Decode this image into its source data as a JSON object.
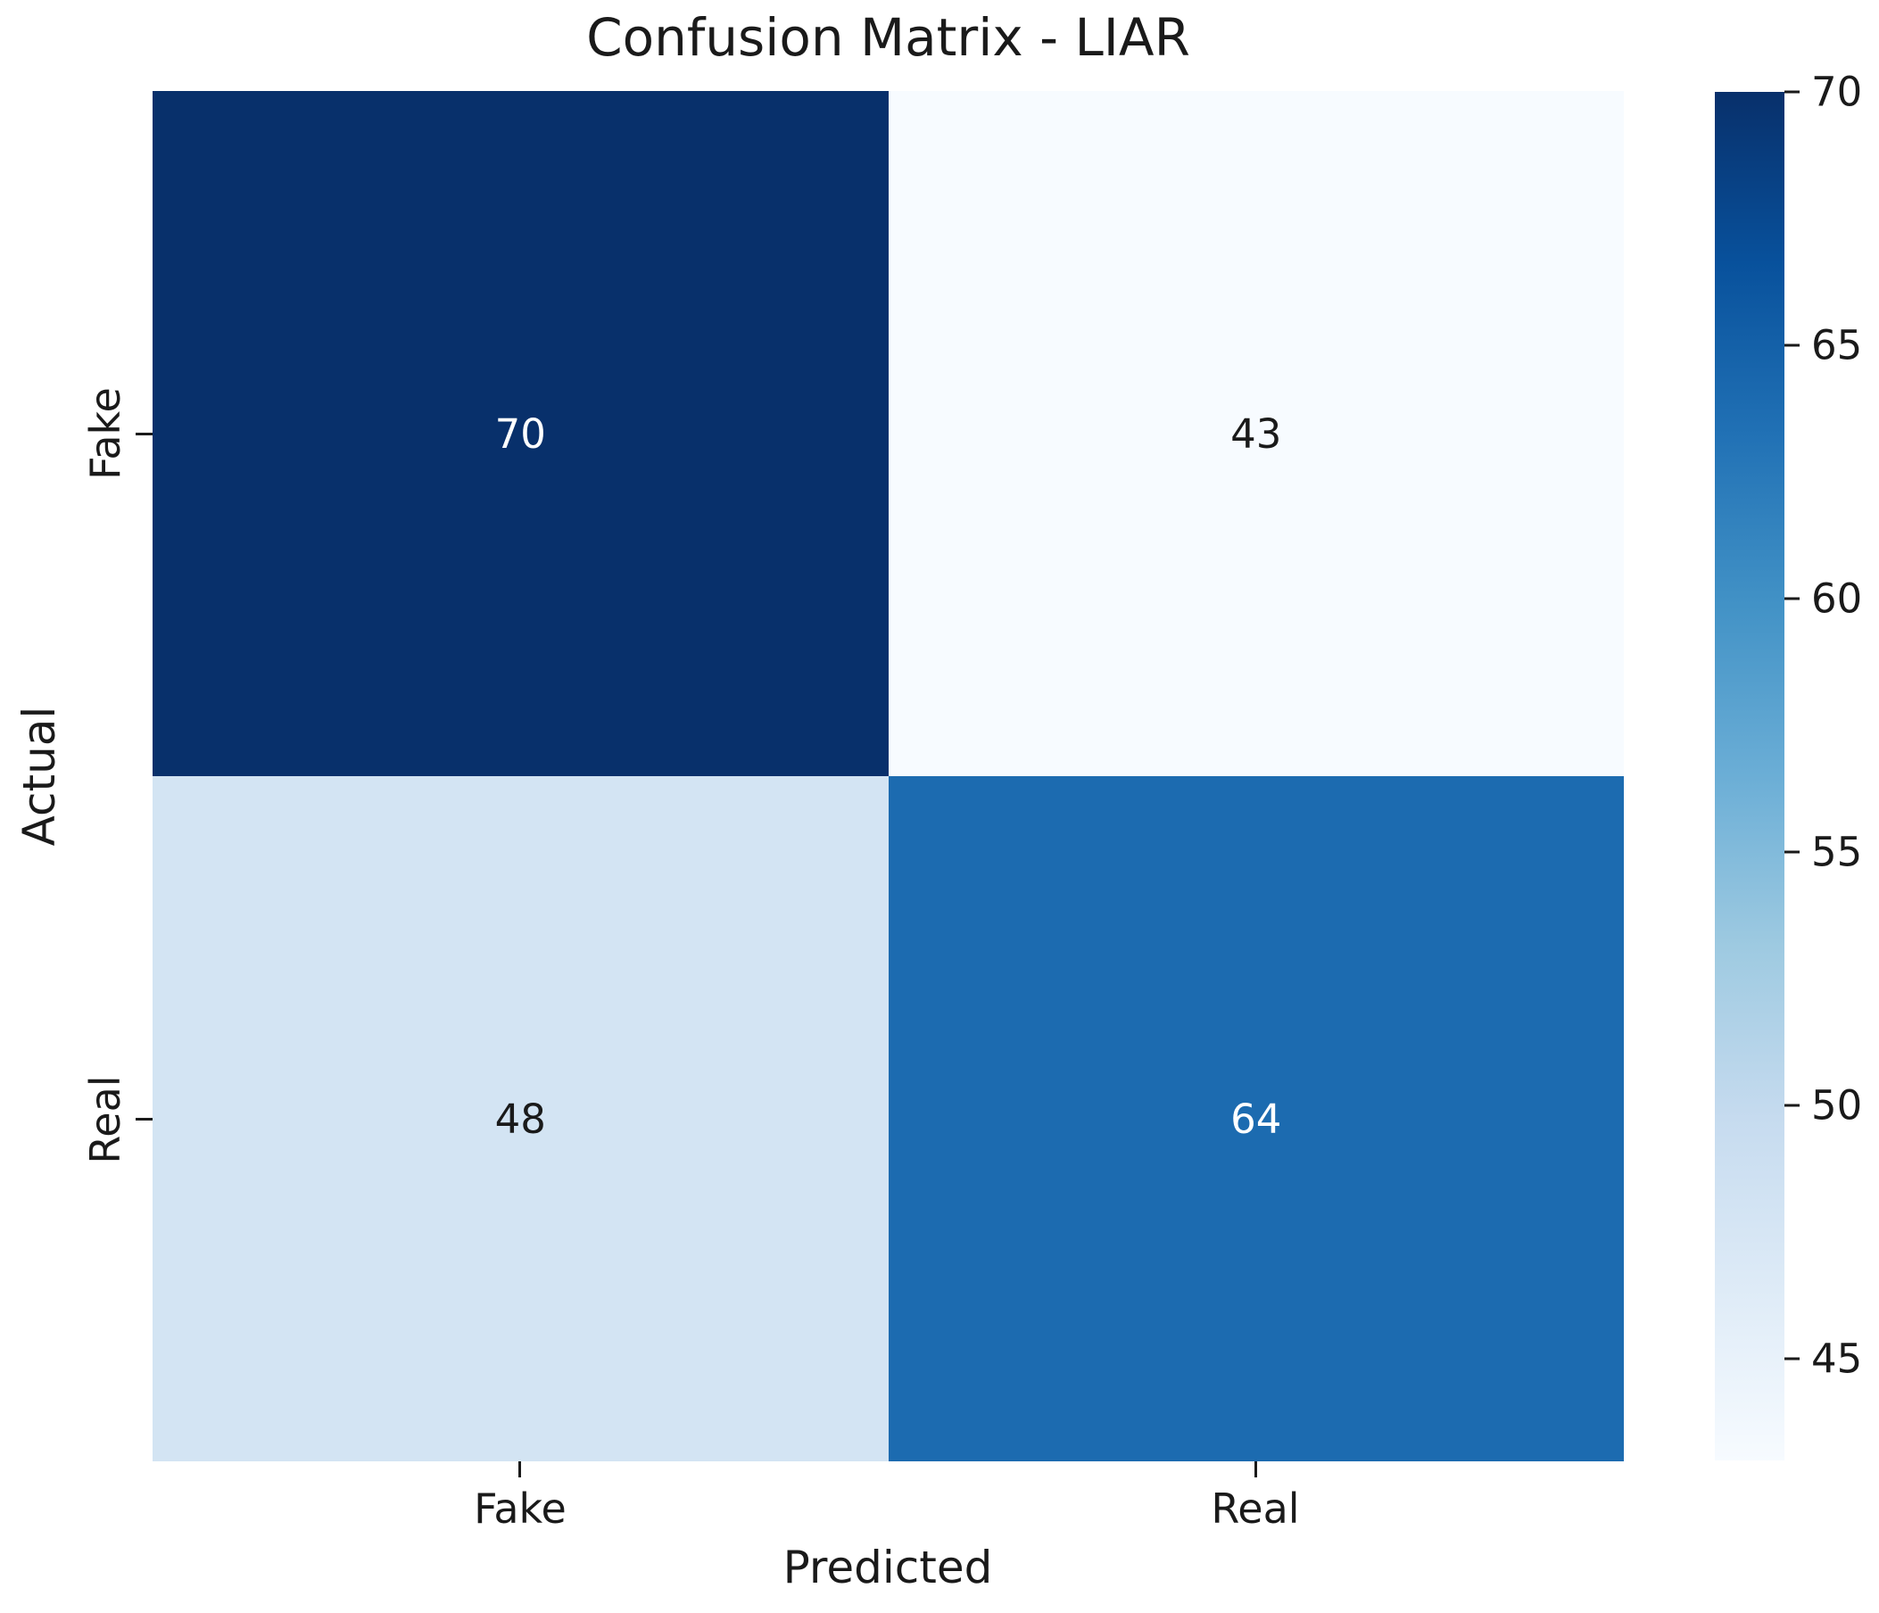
{
  "chart_data": {
    "type": "heatmap",
    "title": "Confusion Matrix - LIAR",
    "xlabel": "Predicted",
    "ylabel": "Actual",
    "x_categories": [
      "Fake",
      "Real"
    ],
    "y_categories": [
      "Fake",
      "Real"
    ],
    "matrix": [
      [
        70,
        43
      ],
      [
        48,
        64
      ]
    ],
    "colormap": "Blues",
    "vmin": 43,
    "vmax": 70,
    "grid": false,
    "legend_position": "colorbar-right",
    "cell_colors": [
      [
        "#08306b",
        "#f7fbff"
      ],
      [
        "#d3e4f3",
        "#1c6bb0"
      ]
    ],
    "cell_text_colors": [
      [
        "#ffffff",
        "#1a1a1a"
      ],
      [
        "#1a1a1a",
        "#ffffff"
      ]
    ],
    "colorbar": {
      "ticks": [
        70,
        65,
        60,
        55,
        50,
        45
      ],
      "gradient_stops": [
        {
          "color": "#08306b",
          "pos": "0%"
        },
        {
          "color": "#08519c",
          "pos": "12.5%"
        },
        {
          "color": "#2171b5",
          "pos": "25%"
        },
        {
          "color": "#4292c6",
          "pos": "37.5%"
        },
        {
          "color": "#6baed6",
          "pos": "50%"
        },
        {
          "color": "#9ecae1",
          "pos": "62.5%"
        },
        {
          "color": "#c6dbef",
          "pos": "75%"
        },
        {
          "color": "#deebf7",
          "pos": "87.5%"
        },
        {
          "color": "#f7fbff",
          "pos": "100%"
        }
      ]
    }
  }
}
